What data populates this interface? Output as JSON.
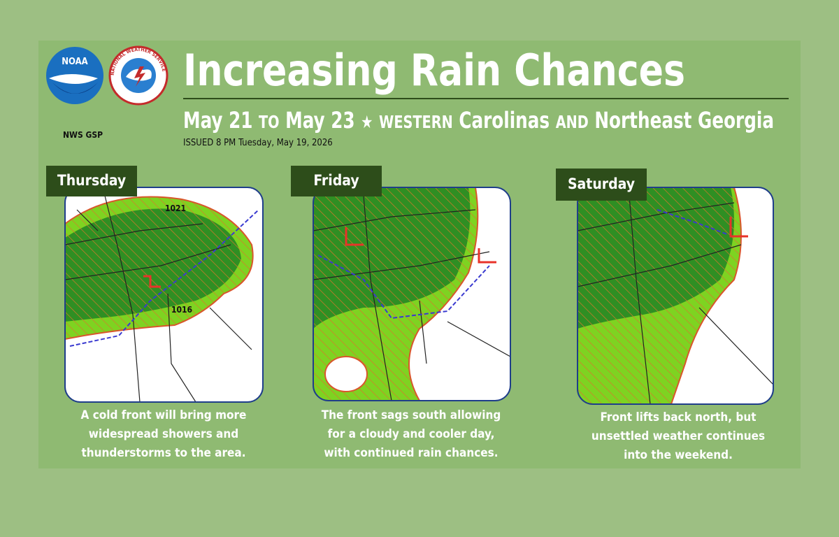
{
  "logos": {
    "noaa": "NOAA",
    "nws": "NATIONAL WEATHER SERVICE"
  },
  "office": "NWS GSP",
  "header": {
    "title": "Increasing Rain Chances",
    "subtitle": [
      "May 21",
      "to",
      "May 23",
      "★",
      "Western",
      "Carolinas",
      "and",
      "Northeast Georgia"
    ],
    "issued": "ISSUED 8 PM Tuesday, May 19, 2026"
  },
  "panels": [
    {
      "day": "Thursday",
      "map_labels": [
        "1021",
        "1016"
      ],
      "caption": [
        "A cold front will bring more",
        "widespread showers and",
        "thunderstorms to the area."
      ]
    },
    {
      "day": "Friday",
      "caption": [
        "The front sags south allowing",
        "for a cloudy and cooler day,",
        "with continued rain chances."
      ]
    },
    {
      "day": "Saturday",
      "caption": [
        "Front lifts back north, but",
        "unsettled weather continues",
        "into the weekend."
      ]
    }
  ]
}
